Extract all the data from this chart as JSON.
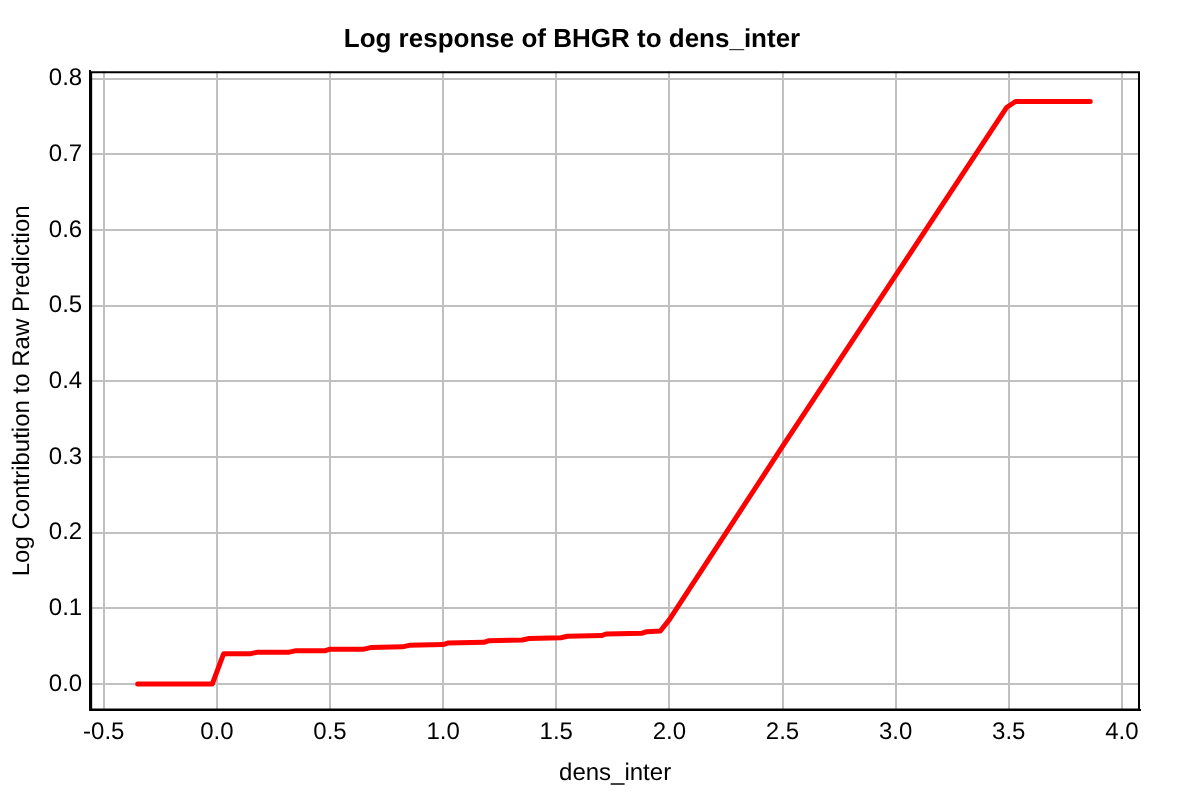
{
  "chart_data": {
    "type": "line",
    "title": "Log response of BHGR to dens_inter",
    "xlabel": "dens_inter",
    "ylabel": "Log Contribution to Raw Prediction",
    "x": [
      -0.35,
      -0.02,
      0.03,
      0.15,
      0.18,
      0.32,
      0.35,
      0.48,
      0.5,
      0.65,
      0.68,
      0.82,
      0.85,
      1.0,
      1.02,
      1.18,
      1.2,
      1.35,
      1.38,
      1.52,
      1.55,
      1.7,
      1.72,
      1.88,
      1.9,
      1.96,
      2.0,
      2.5,
      3.0,
      3.49,
      3.53,
      3.86
    ],
    "series": [
      {
        "color": "#ff0000",
        "values": [
          0,
          0,
          0.04,
          0.04,
          0.042,
          0.042,
          0.044,
          0.044,
          0.046,
          0.046,
          0.048,
          0.049,
          0.051,
          0.052,
          0.054,
          0.055,
          0.057,
          0.058,
          0.06,
          0.061,
          0.063,
          0.064,
          0.066,
          0.067,
          0.069,
          0.07,
          0.085,
          0.314,
          0.54,
          0.762,
          0.77,
          0.77
        ]
      }
    ],
    "xlim": [
      -0.56,
      4.08
    ],
    "ylim": [
      -0.035,
      0.81
    ],
    "xticks": [
      -0.5,
      {
        "value": 0,
        "label": "0.0"
      },
      0.5,
      {
        "value": 1,
        "label": "1.0"
      },
      1.5,
      {
        "value": 2,
        "label": "2.0"
      },
      2.5,
      {
        "value": 3,
        "label": "3.0"
      },
      3.5,
      {
        "value": 4,
        "label": "4.0"
      }
    ],
    "yticks": [
      {
        "value": 0,
        "label": "0.0"
      },
      0.1,
      0.2,
      0.3,
      0.4,
      0.5,
      0.6,
      0.7,
      0.8
    ],
    "grid": true
  }
}
